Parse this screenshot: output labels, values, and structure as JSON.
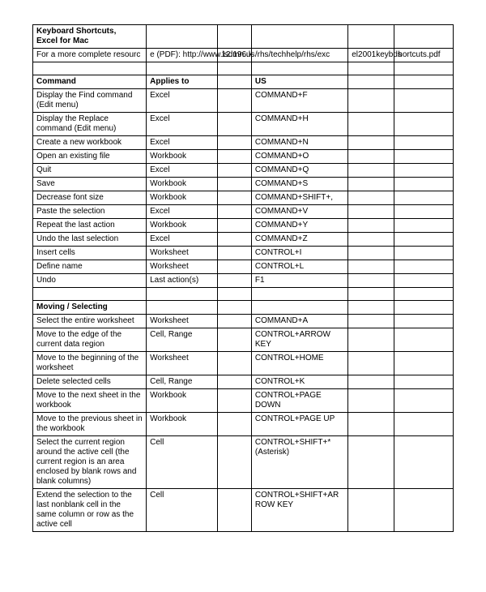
{
  "title_line1": "Keyboard Shortcuts,",
  "title_line2": "Excel for Mac",
  "resource_c0": "For a more complete resourc",
  "resource_c1": "e (PDF): http://www.isd196.k",
  "resource_c2": "12.mn.us",
  "resource_c3": "/rhs/techhelp/rhs/exc",
  "resource_c4": "el2001keybds",
  "resource_c5": "hortcuts.pdf",
  "headers": {
    "command": "Command",
    "applies": "Applies to",
    "us": "US"
  },
  "rows1": [
    {
      "cmd": "Display the Find command (Edit menu)",
      "app": "Excel",
      "us": "COMMAND+F"
    },
    {
      "cmd": "Display the Replace command (Edit menu)",
      "app": "Excel",
      "us": "COMMAND+H"
    },
    {
      "cmd": "Create a new workbook",
      "app": "Excel",
      "us": "COMMAND+N"
    },
    {
      "cmd": "Open an existing file",
      "app": "Workbook",
      "us": "COMMAND+O"
    },
    {
      "cmd": "Quit",
      "app": "Excel",
      "us": "COMMAND+Q"
    },
    {
      "cmd": "Save",
      "app": "Workbook",
      "us": "COMMAND+S"
    },
    {
      "cmd": "Decrease font size",
      "app": "Workbook",
      "us": "COMMAND+SHIFT+,"
    },
    {
      "cmd": "Paste the selection",
      "app": "Excel",
      "us": "COMMAND+V"
    },
    {
      "cmd": "Repeat the last action",
      "app": "Workbook",
      "us": "COMMAND+Y"
    },
    {
      "cmd": "Undo the last selection",
      "app": "Excel",
      "us": "COMMAND+Z"
    },
    {
      "cmd": "Insert cells",
      "app": "Worksheet",
      "us": "CONTROL+I"
    },
    {
      "cmd": "Define name",
      "app": "Worksheet",
      "us": "CONTROL+L"
    },
    {
      "cmd": "Undo",
      "app": "Last action(s)",
      "us": "F1"
    }
  ],
  "section2": "Moving / Selecting",
  "rows2": [
    {
      "cmd": "Select the entire worksheet",
      "app": "Worksheet",
      "us": "COMMAND+A"
    },
    {
      "cmd": "Move to the edge of the current data region",
      "app": "Cell, Range",
      "us": "CONTROL+ARROW KEY"
    },
    {
      "cmd": "Move to the beginning of the worksheet",
      "app": "Worksheet",
      "us": "CONTROL+HOME"
    },
    {
      "cmd": "Delete selected cells",
      "app": "Cell, Range",
      "us": "CONTROL+K"
    },
    {
      "cmd": "Move to the next sheet in the workbook",
      "app": "Workbook",
      "us": "CONTROL+PAGE DOWN"
    },
    {
      "cmd": "Move to the previous sheet in the workbook",
      "app": "Workbook",
      "us": "CONTROL+PAGE UP"
    },
    {
      "cmd": "Select the current region around the active cell (the current region is an area enclosed by blank rows and blank columns)",
      "app": "Cell",
      "us": "CONTROL+SHIFT+* (Asterisk)"
    },
    {
      "cmd": "Extend the selection to the last nonblank cell in the same column or row as the active cell",
      "app": "Cell",
      "us": "CONTROL+SHIFT+ARROW KEY"
    }
  ]
}
